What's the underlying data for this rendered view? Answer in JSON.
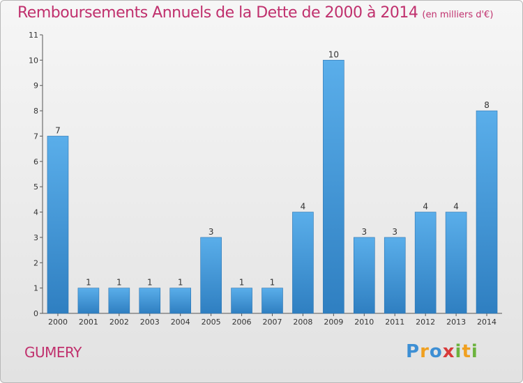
{
  "chart_data": {
    "type": "bar",
    "title": "Remboursements Annuels de la Dette de 2000 à 2014",
    "unit_note": "(en milliers d'€)",
    "categories": [
      "2000",
      "2001",
      "2002",
      "2003",
      "2004",
      "2005",
      "2006",
      "2007",
      "2008",
      "2009",
      "2010",
      "2011",
      "2012",
      "2013",
      "2014"
    ],
    "values": [
      7,
      1,
      1,
      1,
      1,
      3,
      1,
      1,
      4,
      10,
      3,
      3,
      4,
      4,
      8
    ],
    "data_labels": [
      "7",
      "1",
      "1",
      "1",
      "1",
      "3",
      "1",
      "1",
      "4",
      "10",
      "3",
      "3",
      "4",
      "4",
      "8"
    ],
    "y_ticks": [
      "0",
      "1",
      "2",
      "3",
      "4",
      "5",
      "6",
      "7",
      "8",
      "9",
      "10",
      "11"
    ],
    "ylim": [
      0,
      11
    ],
    "grid": false,
    "bar_color": "#4a9fdd"
  },
  "footer": {
    "commune": "GUMERY",
    "logo_letters": [
      {
        "ch": "P",
        "color": "#3d8fd4"
      },
      {
        "ch": "r",
        "color": "#f0a020"
      },
      {
        "ch": "o",
        "color": "#3d8fd4"
      },
      {
        "ch": "x",
        "color": "#d83a3a"
      },
      {
        "ch": "i",
        "color": "#6cb33e"
      },
      {
        "ch": "t",
        "color": "#f0a020"
      },
      {
        "ch": "i",
        "color": "#6cb33e"
      }
    ]
  }
}
